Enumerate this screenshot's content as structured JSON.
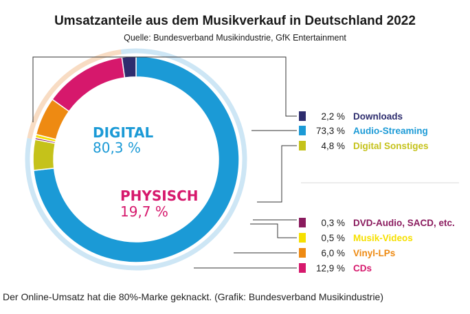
{
  "chart_data": {
    "type": "pie",
    "title": "Umsatzanteile aus dem Musikverkauf in Deutschland 2022",
    "subtitle": "Quelle: Bundesverband Musikindustrie, GfK Entertainment",
    "groups": [
      {
        "name": "DIGITAL",
        "value_label": "80,3 %",
        "value": 80.3,
        "color": "#1b9ad6"
      },
      {
        "name": "PHYSISCH",
        "value_label": "19,7 %",
        "value": 19.7,
        "color": "#d6186c"
      }
    ],
    "series": [
      {
        "name": "Downloads",
        "value": 2.2,
        "value_label": "2,2 %",
        "color": "#2e2d6e",
        "group": "DIGITAL"
      },
      {
        "name": "Audio-Streaming",
        "value": 73.3,
        "value_label": "73,3 %",
        "color": "#1b9ad6",
        "group": "DIGITAL"
      },
      {
        "name": "Digital Sonstiges",
        "value": 4.8,
        "value_label": "4,8 %",
        "color": "#c5c21a",
        "group": "DIGITAL"
      },
      {
        "name": "DVD-Audio, SACD, etc.",
        "value": 0.3,
        "value_label": "0,3 %",
        "color": "#8a1b5e",
        "group": "PHYSISCH"
      },
      {
        "name": "Musik-Videos",
        "value": 0.5,
        "value_label": "0,5 %",
        "color": "#f6e000",
        "group": "PHYSISCH"
      },
      {
        "name": "Vinyl-LPs",
        "value": 6.0,
        "value_label": "6,0 %",
        "color": "#ee8a12",
        "group": "PHYSISCH"
      },
      {
        "name": "CDs",
        "value": 12.9,
        "value_label": "12,9 %",
        "color": "#d6186c",
        "group": "PHYSISCH"
      }
    ],
    "legend_placement": "right"
  },
  "caption": "Der Online-Umsatz hat die 80%-Marke geknackt. (Grafik: Bundesverband Musikindustrie)"
}
